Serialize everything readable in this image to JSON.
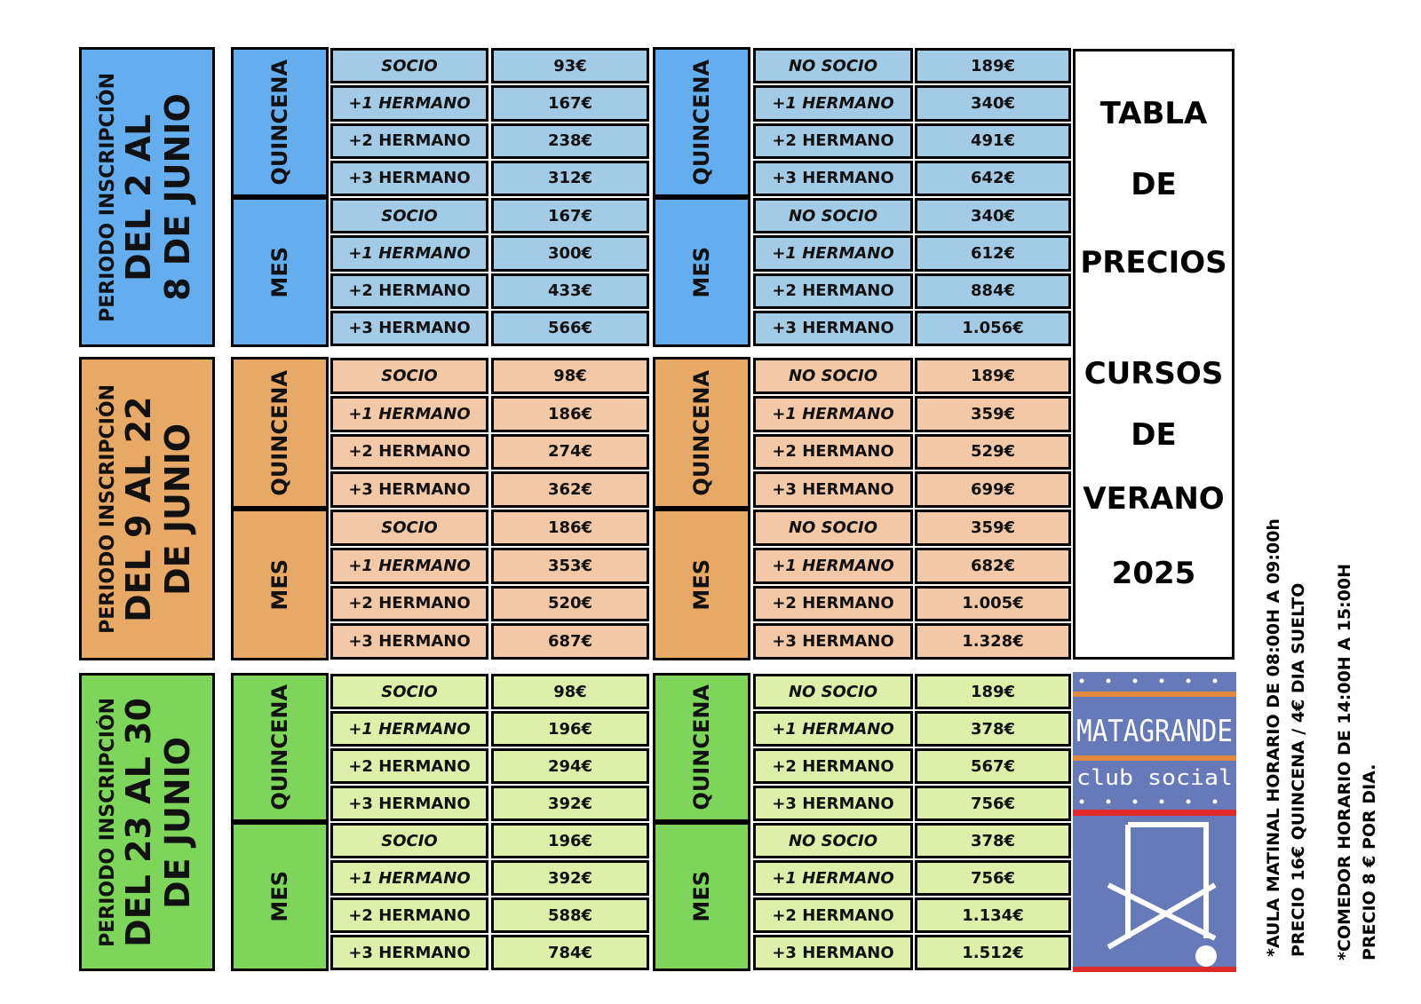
{
  "periods": [
    {
      "label": [
        "PERIODO INSCRIPCIÓN",
        "DEL 2 AL",
        "8 DE JUNIO"
      ],
      "blocks": [
        {
          "groups": [
            {
              "name": "QUINCENA",
              "rows": [
                {
                  "label": "SOCIO",
                  "price": "93€"
                },
                {
                  "label": "+1 HERMANO",
                  "price": "167€"
                },
                {
                  "label": "+2 HERMANO",
                  "price": "238€"
                },
                {
                  "label": "+3 HERMANO",
                  "price": "312€"
                }
              ]
            },
            {
              "name": "MES",
              "rows": [
                {
                  "label": "SOCIO",
                  "price": "167€"
                },
                {
                  "label": "+1 HERMANO",
                  "price": "300€"
                },
                {
                  "label": "+2 HERMANO",
                  "price": "433€"
                },
                {
                  "label": "+3 HERMANO",
                  "price": "566€"
                }
              ]
            }
          ]
        },
        {
          "groups": [
            {
              "name": "QUINCENA",
              "rows": [
                {
                  "label": "NO SOCIO",
                  "price": "189€"
                },
                {
                  "label": "+1 HERMANO",
                  "price": "340€"
                },
                {
                  "label": "+2 HERMANO",
                  "price": "491€"
                },
                {
                  "label": "+3 HERMANO",
                  "price": "642€"
                }
              ]
            },
            {
              "name": "MES",
              "rows": [
                {
                  "label": "NO SOCIO",
                  "price": "340€"
                },
                {
                  "label": "+1 HERMANO",
                  "price": "612€"
                },
                {
                  "label": "+2 HERMANO",
                  "price": "884€"
                },
                {
                  "label": "+3 HERMANO",
                  "price": "1.056€"
                }
              ]
            }
          ]
        }
      ]
    },
    {
      "label": [
        "PERIODO INSCRIPCIÓN",
        "DEL 9 AL 22",
        "DE JUNIO"
      ],
      "blocks": [
        {
          "groups": [
            {
              "name": "QUINCENA",
              "rows": [
                {
                  "label": "SOCIO",
                  "price": "98€"
                },
                {
                  "label": "+1 HERMANO",
                  "price": "186€"
                },
                {
                  "label": "+2 HERMANO",
                  "price": "274€"
                },
                {
                  "label": "+3 HERMANO",
                  "price": "362€"
                }
              ]
            },
            {
              "name": "MES",
              "rows": [
                {
                  "label": "SOCIO",
                  "price": "186€"
                },
                {
                  "label": "+1 HERMANO",
                  "price": "353€"
                },
                {
                  "label": "+2 HERMANO",
                  "price": "520€"
                },
                {
                  "label": "+3 HERMANO",
                  "price": "687€"
                }
              ]
            }
          ]
        },
        {
          "groups": [
            {
              "name": "QUINCENA",
              "rows": [
                {
                  "label": "NO SOCIO",
                  "price": "189€"
                },
                {
                  "label": "+1 HERMANO",
                  "price": "359€"
                },
                {
                  "label": "+2 HERMANO",
                  "price": "529€"
                },
                {
                  "label": "+3 HERMANO",
                  "price": "699€"
                }
              ]
            },
            {
              "name": "MES",
              "rows": [
                {
                  "label": "NO SOCIO",
                  "price": "359€"
                },
                {
                  "label": "+1 HERMANO",
                  "price": "682€"
                },
                {
                  "label": "+2 HERMANO",
                  "price": "1.005€"
                },
                {
                  "label": "+3 HERMANO",
                  "price": "1.328€"
                }
              ]
            }
          ]
        }
      ]
    },
    {
      "label": [
        "PERIODO INSCRIPCIÓN",
        "DEL 23 AL 30",
        "DE JUNIO"
      ],
      "blocks": [
        {
          "groups": [
            {
              "name": "QUINCENA",
              "rows": [
                {
                  "label": "SOCIO",
                  "price": "98€"
                },
                {
                  "label": "+1 HERMANO",
                  "price": "196€"
                },
                {
                  "label": "+2 HERMANO",
                  "price": "294€"
                },
                {
                  "label": "+3 HERMANO",
                  "price": "392€"
                }
              ]
            },
            {
              "name": "MES",
              "rows": [
                {
                  "label": "SOCIO",
                  "price": "196€"
                },
                {
                  "label": "+1 HERMANO",
                  "price": "392€"
                },
                {
                  "label": "+2 HERMANO",
                  "price": "588€"
                },
                {
                  "label": "+3 HERMANO",
                  "price": "784€"
                }
              ]
            }
          ]
        },
        {
          "groups": [
            {
              "name": "QUINCENA",
              "rows": [
                {
                  "label": "NO SOCIO",
                  "price": "189€"
                },
                {
                  "label": "+1 HERMANO",
                  "price": "378€"
                },
                {
                  "label": "+2 HERMANO",
                  "price": "567€"
                },
                {
                  "label": "+3 HERMANO",
                  "price": "756€"
                }
              ]
            },
            {
              "name": "MES",
              "rows": [
                {
                  "label": "NO SOCIO",
                  "price": "378€"
                },
                {
                  "label": "+1 HERMANO",
                  "price": "756€"
                },
                {
                  "label": "+2 HERMANO",
                  "price": "1.134€"
                },
                {
                  "label": "+3 HERMANO",
                  "price": "1.512€"
                }
              ]
            }
          ]
        }
      ]
    }
  ],
  "title": {
    "lines": [
      "TABLA",
      "DE",
      "PRECIOS",
      "CURSOS",
      "DE",
      "VERANO",
      "2025"
    ]
  },
  "logo": {
    "name": "MATAGRANDE",
    "subtitle": "club social"
  },
  "notes": [
    "*AULA MATINAL HORARIO DE 08:00H A 09:00h",
    "PRECIO 16€ QUINCENA /  4€ DIA SUELTO",
    "*COMEDOR HORARIO DE 14:00H A 15:00H",
    "PRECIO    8 € POR DIA."
  ]
}
